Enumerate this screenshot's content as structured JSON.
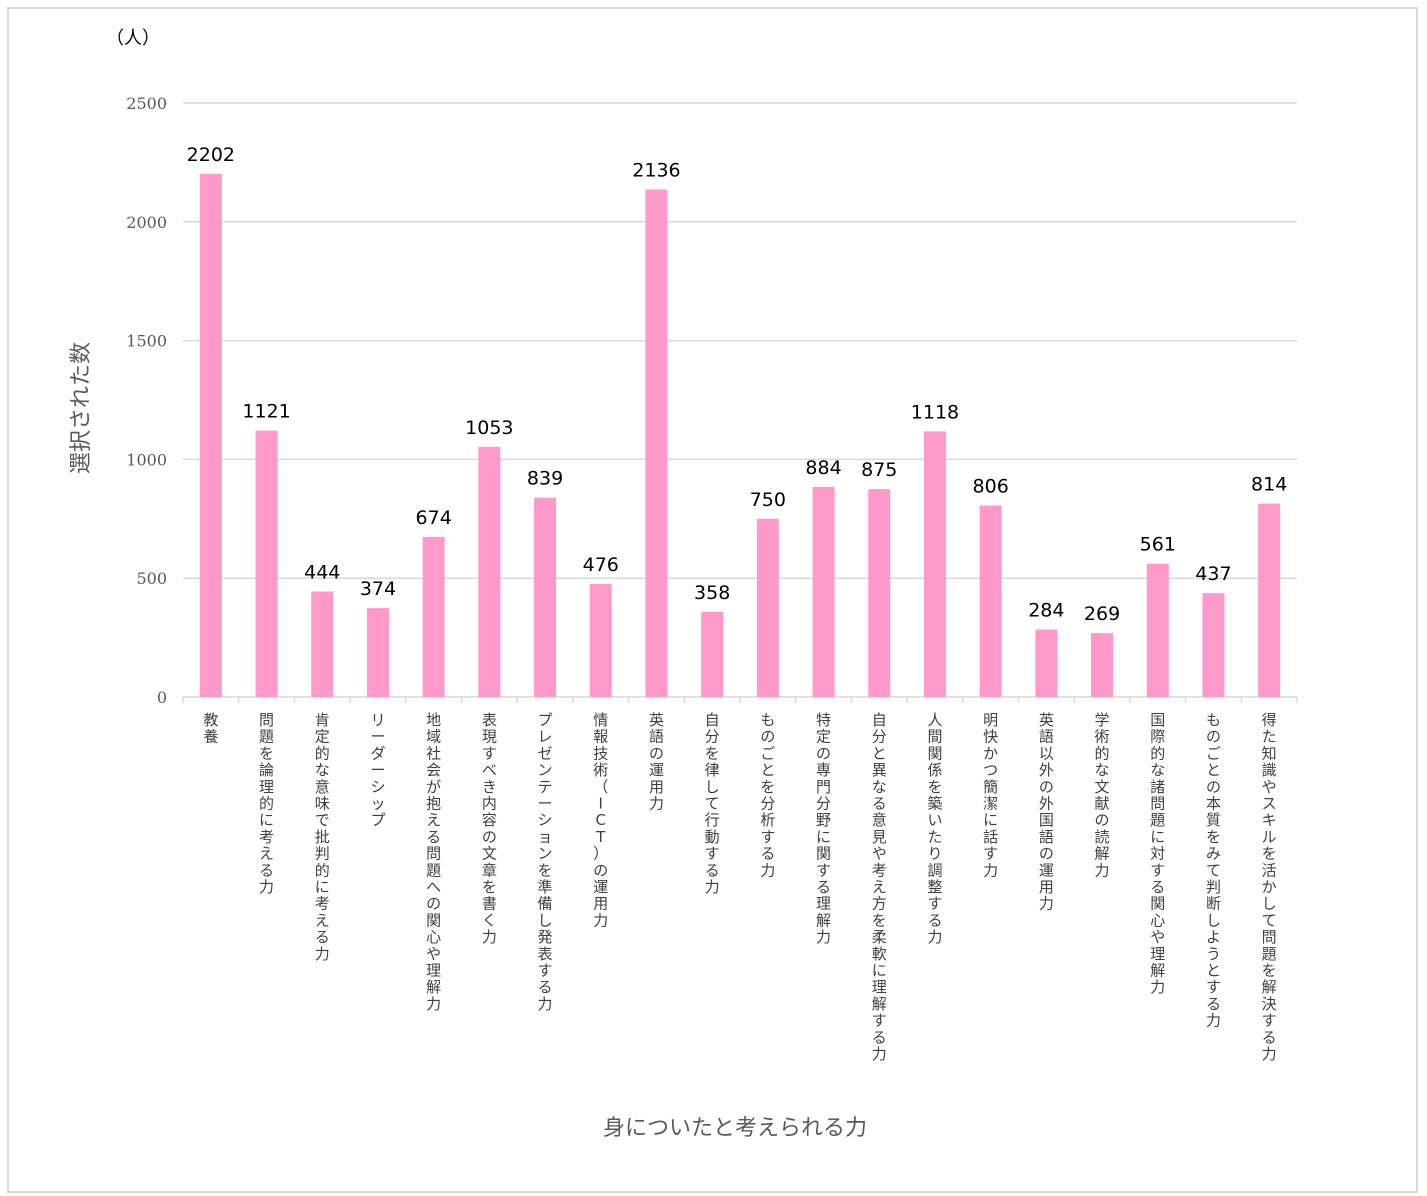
{
  "chart_data": {
    "type": "bar",
    "unit_label": "（人）",
    "ylabel": "選択された数",
    "xlabel": "身についたと考えられる力",
    "ylim": [
      0,
      2500
    ],
    "yticks": [
      0,
      500,
      1000,
      1500,
      2000,
      2500
    ],
    "grid": true,
    "bar_color": "#ff99cc",
    "categories": [
      "教養",
      "問題を論理的に考える力",
      "肯定的な意味で批判的に考える力",
      "リーダーシップ",
      "地域社会が抱える問題への関心や理解力",
      "表現すべき内容の文章を書く力",
      "プレゼンテーションを準備し発表する力",
      "情報技術（ICT）の運用力",
      "英語の運用力",
      "自分を律して行動する力",
      "ものごとを分析する力",
      "特定の専門分野に関する理解力",
      "自分と異なる意見や考え方を柔軟に理解する力",
      "人間関係を築いたり調整する力",
      "明快かつ簡潔に話す力",
      "英語以外の外国語の運用力",
      "学術的な文献の読解力",
      "国際的な諸問題に対する関心や理解力",
      "ものごとの本質をみて判断しようとする力",
      "得た知識やスキルを活かして問題を解決する力"
    ],
    "values": [
      2202,
      1121,
      444,
      374,
      674,
      1053,
      839,
      476,
      2136,
      358,
      750,
      884,
      875,
      1118,
      806,
      284,
      269,
      561,
      437,
      814
    ]
  }
}
